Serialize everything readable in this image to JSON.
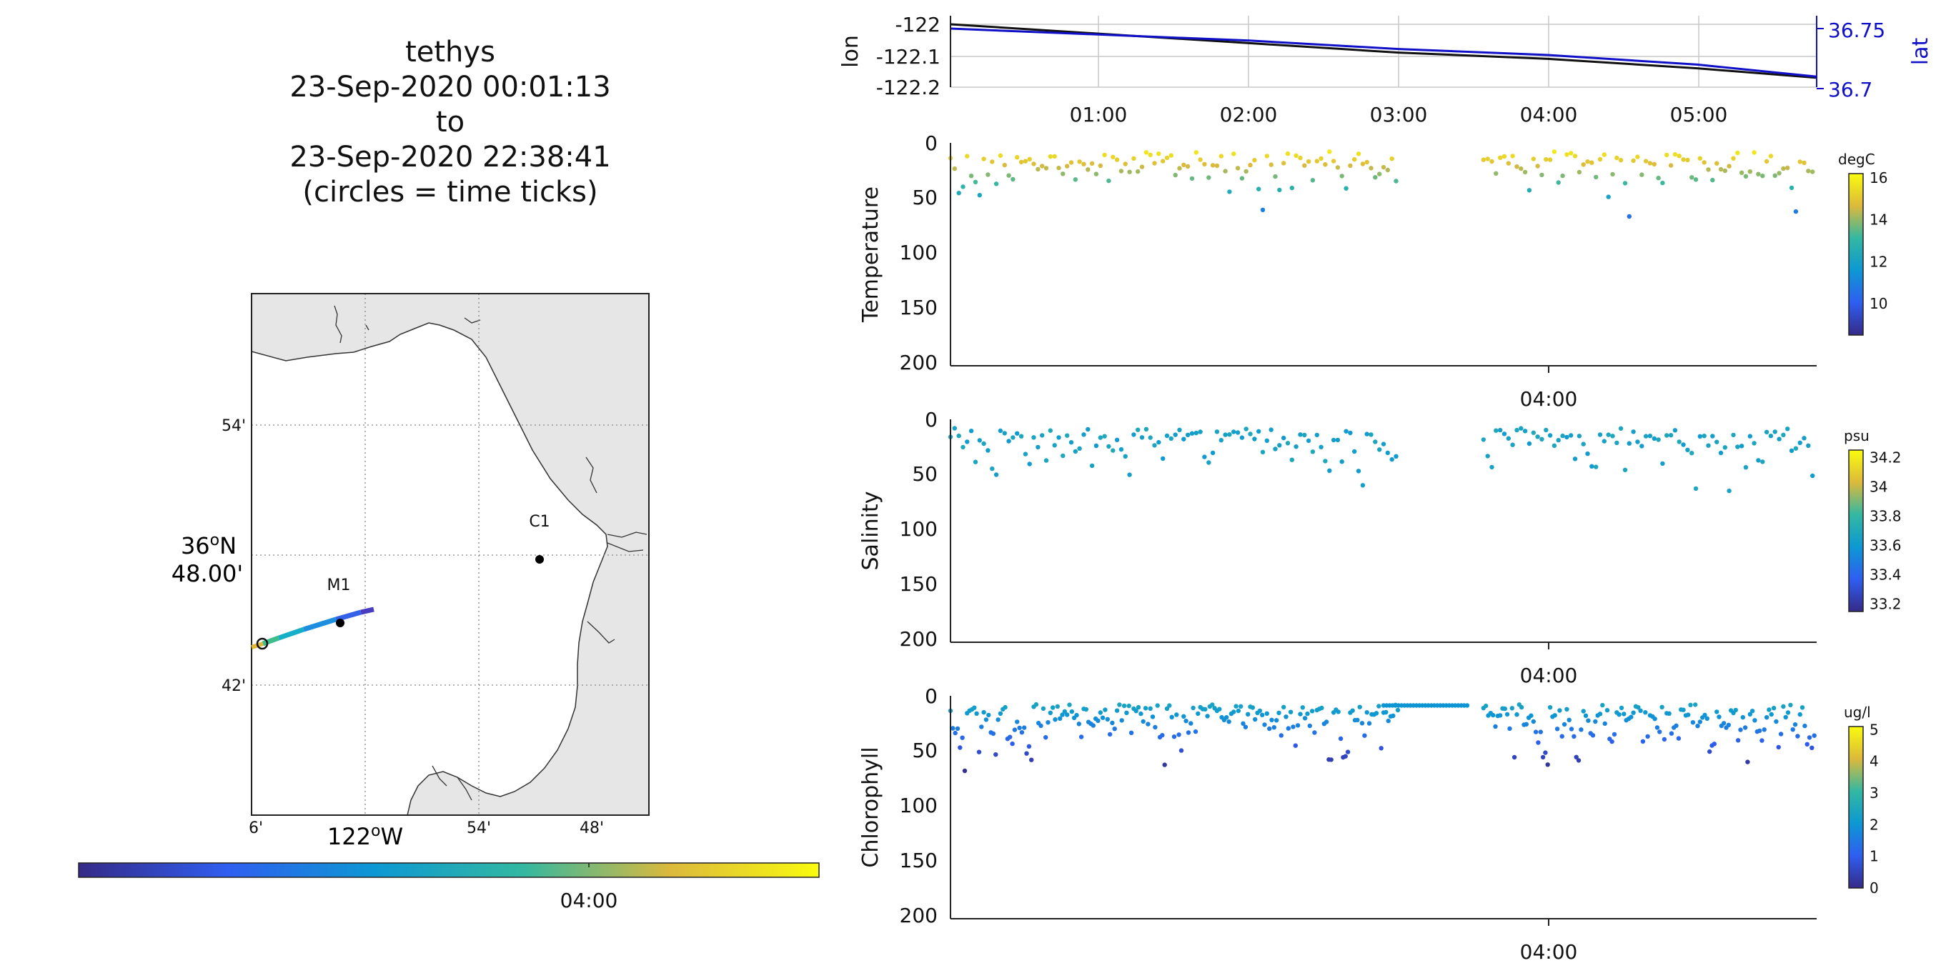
{
  "header": {
    "lines": [
      "tethys",
      "23-Sep-2020 00:01:13",
      "to",
      "23-Sep-2020 22:38:41",
      "(circles = time ticks)"
    ]
  },
  "map": {
    "lat_ticks": [
      "54'",
      "42'"
    ],
    "lat_main": [
      "36",
      "o",
      "N",
      "48.00'"
    ],
    "lon_ticks": [
      "6'",
      "54'",
      "48'"
    ],
    "lon_main": [
      "122",
      "o",
      "W"
    ],
    "stations": [
      {
        "name": "M1"
      },
      {
        "name": "C1"
      }
    ],
    "land_color": "#e6e6e6",
    "colorbar_label": "04:00"
  },
  "chart_data": [
    {
      "type": "line",
      "panel": "position",
      "ylabel": "lon",
      "ylabel_right": "lat",
      "x_ticks": [
        "01:00",
        "02:00",
        "03:00",
        "04:00",
        "05:00"
      ],
      "y_left_ticks": [
        "-122",
        "-122.1",
        "-122.2"
      ],
      "y_left_values": [
        -122.0,
        -122.1,
        -122.2
      ],
      "y_right_ticks": [
        "36.75",
        "36.7"
      ],
      "y_right_values": [
        36.75,
        36.7
      ],
      "series": [
        {
          "color": "#111111",
          "x": [
            0.0,
            1.0,
            2.0,
            3.0,
            4.0,
            5.0,
            5.8
          ],
          "y": [
            -122.0,
            -122.03,
            -122.06,
            -122.09,
            -122.11,
            -122.14,
            -122.17
          ]
        },
        {
          "color": "#1010c8",
          "x": [
            0.0,
            1.0,
            2.0,
            3.0,
            4.0,
            5.0,
            5.8
          ],
          "y": [
            36.75,
            36.745,
            36.74,
            36.733,
            36.728,
            36.72,
            36.71
          ]
        }
      ]
    },
    {
      "type": "scatter",
      "panel": "temperature",
      "ylabel": "Temperature",
      "x_tick": "04:00",
      "y_ticks": [
        "0",
        "50",
        "100",
        "150",
        "200"
      ],
      "ylim": [
        0,
        200
      ],
      "colorbar": {
        "unit": "degC",
        "ticks": [
          "16",
          "14",
          "12",
          "10"
        ],
        "values": [
          16,
          14,
          12,
          10
        ],
        "range": [
          8.5,
          16.2
        ]
      },
      "value_range": [
        10.5,
        15.8
      ]
    },
    {
      "type": "scatter",
      "panel": "salinity",
      "ylabel": "Salinity",
      "x_tick": "04:00",
      "y_ticks": [
        "0",
        "50",
        "100",
        "150",
        "200"
      ],
      "ylim": [
        0,
        200
      ],
      "colorbar": {
        "unit": "psu",
        "ticks": [
          "34.2",
          "34",
          "33.8",
          "33.6",
          "33.4",
          "33.2"
        ],
        "values": [
          34.2,
          34.0,
          33.8,
          33.6,
          33.4,
          33.2
        ],
        "range": [
          33.15,
          34.25
        ]
      },
      "value_range": [
        33.6,
        33.7
      ]
    },
    {
      "type": "scatter",
      "panel": "chlorophyll",
      "ylabel": "Chlorophyll",
      "x_tick": "04:00",
      "y_ticks": [
        "0",
        "50",
        "100",
        "150",
        "200"
      ],
      "ylim": [
        0,
        200
      ],
      "colorbar": {
        "unit": "ug/l",
        "ticks": [
          "5",
          "4",
          "3",
          "2",
          "1",
          "0"
        ],
        "values": [
          5,
          4,
          3,
          2,
          1,
          0
        ],
        "range": [
          0,
          5.1
        ]
      },
      "value_range": [
        0.3,
        2.4
      ]
    }
  ]
}
